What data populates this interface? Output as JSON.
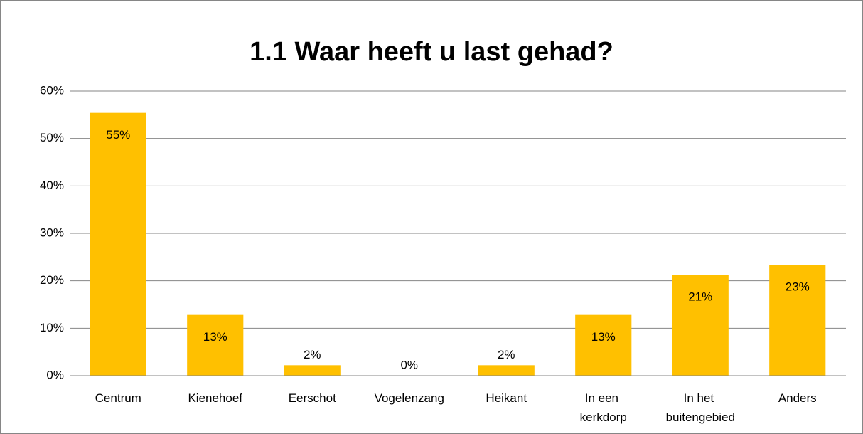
{
  "chart_data": {
    "type": "bar",
    "title": "1.1 Waar heeft u last gehad?",
    "categories": [
      "Centrum",
      "Kienehoef",
      "Eerschot",
      "Vogelenzang",
      "Heikant",
      "In een kerkdorp",
      "In het buitengebied",
      "Anders"
    ],
    "values": [
      55.4,
      12.8,
      2.2,
      0,
      2.2,
      12.8,
      21.3,
      23.4
    ],
    "value_labels": [
      "55%",
      "13%",
      "2%",
      "0%",
      "2%",
      "13%",
      "21%",
      "23%"
    ],
    "color": "#ffc000",
    "ylim": [
      0,
      60
    ],
    "yticks": [
      {
        "value": 0,
        "label": "0%"
      },
      {
        "value": 10,
        "label": "10%"
      },
      {
        "value": 20,
        "label": "20%"
      },
      {
        "value": 30,
        "label": "30%"
      },
      {
        "value": 40,
        "label": "40%"
      },
      {
        "value": 50,
        "label": "50%"
      },
      {
        "value": 60,
        "label": "60%"
      }
    ],
    "grid": true
  }
}
